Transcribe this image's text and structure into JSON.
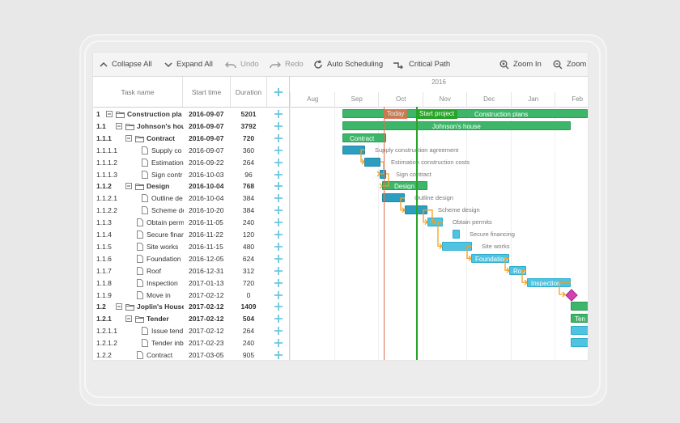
{
  "toolbar": {
    "collapse_all": "Collapse All",
    "expand_all": "Expand All",
    "undo": "Undo",
    "redo": "Redo",
    "auto_scheduling": "Auto Scheduling",
    "critical_path": "Critical Path",
    "zoom_in": "Zoom In",
    "zoom_out": "Zoom"
  },
  "grid": {
    "headers": {
      "task_name": "Task name",
      "start_time": "Start time",
      "duration": "Duration"
    },
    "rows": [
      {
        "wbs": "1",
        "name": "Construction pla",
        "start": "2016-09-07",
        "duration": "5201",
        "bold": true,
        "level": 0,
        "type": "folder"
      },
      {
        "wbs": "1.1",
        "name": "Johnson's hou",
        "start": "2016-09-07",
        "duration": "3792",
        "bold": true,
        "level": 1,
        "type": "folder"
      },
      {
        "wbs": "1.1.1",
        "name": "Contract",
        "start": "2016-09-07",
        "duration": "720",
        "bold": true,
        "level": 2,
        "type": "folder"
      },
      {
        "wbs": "1.1.1.1",
        "name": "Supply co",
        "start": "2016-09-07",
        "duration": "360",
        "bold": false,
        "level": 3,
        "type": "file"
      },
      {
        "wbs": "1.1.1.2",
        "name": "Estimation",
        "start": "2016-09-22",
        "duration": "264",
        "bold": false,
        "level": 3,
        "type": "file"
      },
      {
        "wbs": "1.1.1.3",
        "name": "Sign contr",
        "start": "2016-10-03",
        "duration": "96",
        "bold": false,
        "level": 3,
        "type": "file"
      },
      {
        "wbs": "1.1.2",
        "name": "Design",
        "start": "2016-10-04",
        "duration": "768",
        "bold": true,
        "level": 2,
        "type": "folder"
      },
      {
        "wbs": "1.1.2.1",
        "name": "Outline de",
        "start": "2016-10-04",
        "duration": "384",
        "bold": false,
        "level": 3,
        "type": "file"
      },
      {
        "wbs": "1.1.2.2",
        "name": "Scheme de",
        "start": "2016-10-20",
        "duration": "384",
        "bold": false,
        "level": 3,
        "type": "file"
      },
      {
        "wbs": "1.1.3",
        "name": "Obtain permi",
        "start": "2016-11-05",
        "duration": "240",
        "bold": false,
        "level": 2,
        "type": "file"
      },
      {
        "wbs": "1.1.4",
        "name": "Secure finan",
        "start": "2016-11-22",
        "duration": "120",
        "bold": false,
        "level": 2,
        "type": "file"
      },
      {
        "wbs": "1.1.5",
        "name": "Site works",
        "start": "2016-11-15",
        "duration": "480",
        "bold": false,
        "level": 2,
        "type": "file"
      },
      {
        "wbs": "1.1.6",
        "name": "Foundation",
        "start": "2016-12-05",
        "duration": "624",
        "bold": false,
        "level": 2,
        "type": "file"
      },
      {
        "wbs": "1.1.7",
        "name": "Roof",
        "start": "2016-12-31",
        "duration": "312",
        "bold": false,
        "level": 2,
        "type": "file"
      },
      {
        "wbs": "1.1.8",
        "name": "Inspection",
        "start": "2017-01-13",
        "duration": "720",
        "bold": false,
        "level": 2,
        "type": "file"
      },
      {
        "wbs": "1.1.9",
        "name": "Move in",
        "start": "2017-02-12",
        "duration": "0",
        "bold": false,
        "level": 2,
        "type": "file"
      },
      {
        "wbs": "1.2",
        "name": "Joplin's House",
        "start": "2017-02-12",
        "duration": "1409",
        "bold": true,
        "level": 1,
        "type": "folder"
      },
      {
        "wbs": "1.2.1",
        "name": "Tender",
        "start": "2017-02-12",
        "duration": "504",
        "bold": true,
        "level": 2,
        "type": "folder"
      },
      {
        "wbs": "1.2.1.1",
        "name": "Issue tend",
        "start": "2017-02-12",
        "duration": "264",
        "bold": false,
        "level": 3,
        "type": "file"
      },
      {
        "wbs": "1.2.1.2",
        "name": "Tender inb",
        "start": "2017-02-23",
        "duration": "240",
        "bold": false,
        "level": 3,
        "type": "file"
      },
      {
        "wbs": "1.2.2",
        "name": "Contract",
        "start": "2017-03-05",
        "duration": "905",
        "bold": false,
        "level": 2,
        "type": "file"
      }
    ]
  },
  "timeline": {
    "year": "2016",
    "months": [
      "Aug",
      "Sep",
      "Oct",
      "Nov",
      "Dec",
      "Jan",
      "Feb"
    ],
    "today_label": "Today",
    "start_label": "Start project",
    "today_color": "#e07050",
    "start_color": "#28a428"
  },
  "bars": [
    {
      "row": 0,
      "kind": "grn",
      "label": "Construction plans",
      "label_inside": true,
      "text_offset": 162
    },
    {
      "row": 1,
      "kind": "grn",
      "label": "Johnson's house",
      "label_inside": true,
      "text_offset": 110
    },
    {
      "row": 2,
      "kind": "grn",
      "label": "Contract",
      "label_inside": true,
      "text_offset": 8
    },
    {
      "row": 3,
      "kind": "teal",
      "label": "Supply construction agreement",
      "label_inside": false
    },
    {
      "row": 4,
      "kind": "teal",
      "label": "Estimation construction costs",
      "label_inside": false
    },
    {
      "row": 5,
      "kind": "teal",
      "label": "Sign contract",
      "label_inside": false
    },
    {
      "row": 6,
      "kind": "grn",
      "label": "Design",
      "label_inside": true,
      "text_offset": 14
    },
    {
      "row": 7,
      "kind": "teal",
      "label": "Outline design",
      "label_inside": false
    },
    {
      "row": 8,
      "kind": "teal",
      "label": "Scheme design",
      "label_inside": false
    },
    {
      "row": 9,
      "kind": "cyan",
      "label": "Obtain permits",
      "label_inside": false
    },
    {
      "row": 10,
      "kind": "cyan",
      "label": "Secure financing",
      "label_inside": false
    },
    {
      "row": 11,
      "kind": "cyan",
      "label": "Site works",
      "label_inside": false
    },
    {
      "row": 12,
      "kind": "cyan",
      "label": "Foundation",
      "label_inside": true,
      "text_offset": 4
    },
    {
      "row": 13,
      "kind": "cyan",
      "label": "Roof",
      "label_inside": true,
      "text_offset": 4
    },
    {
      "row": 14,
      "kind": "cyan",
      "label": "Inspection",
      "label_inside": true,
      "text_offset": 4
    },
    {
      "row": 15,
      "kind": "milestone",
      "label": "",
      "label_inside": false
    },
    {
      "row": 16,
      "kind": "grn",
      "label": "",
      "label_inside": true
    },
    {
      "row": 17,
      "kind": "grn",
      "label": "Ten",
      "label_inside": true,
      "text_offset": 4
    },
    {
      "row": 18,
      "kind": "cyan",
      "label": "",
      "label_inside": true
    },
    {
      "row": 19,
      "kind": "cyan",
      "label": "",
      "label_inside": true
    }
  ],
  "colors": {
    "summary_green": "#3db66a",
    "task_teal": "#2c9ec0",
    "task_cyan": "#4fc3e0",
    "milestone": "#d63fb3",
    "link_orange": "#f0a020",
    "add_plus": "#6cc6e0"
  }
}
